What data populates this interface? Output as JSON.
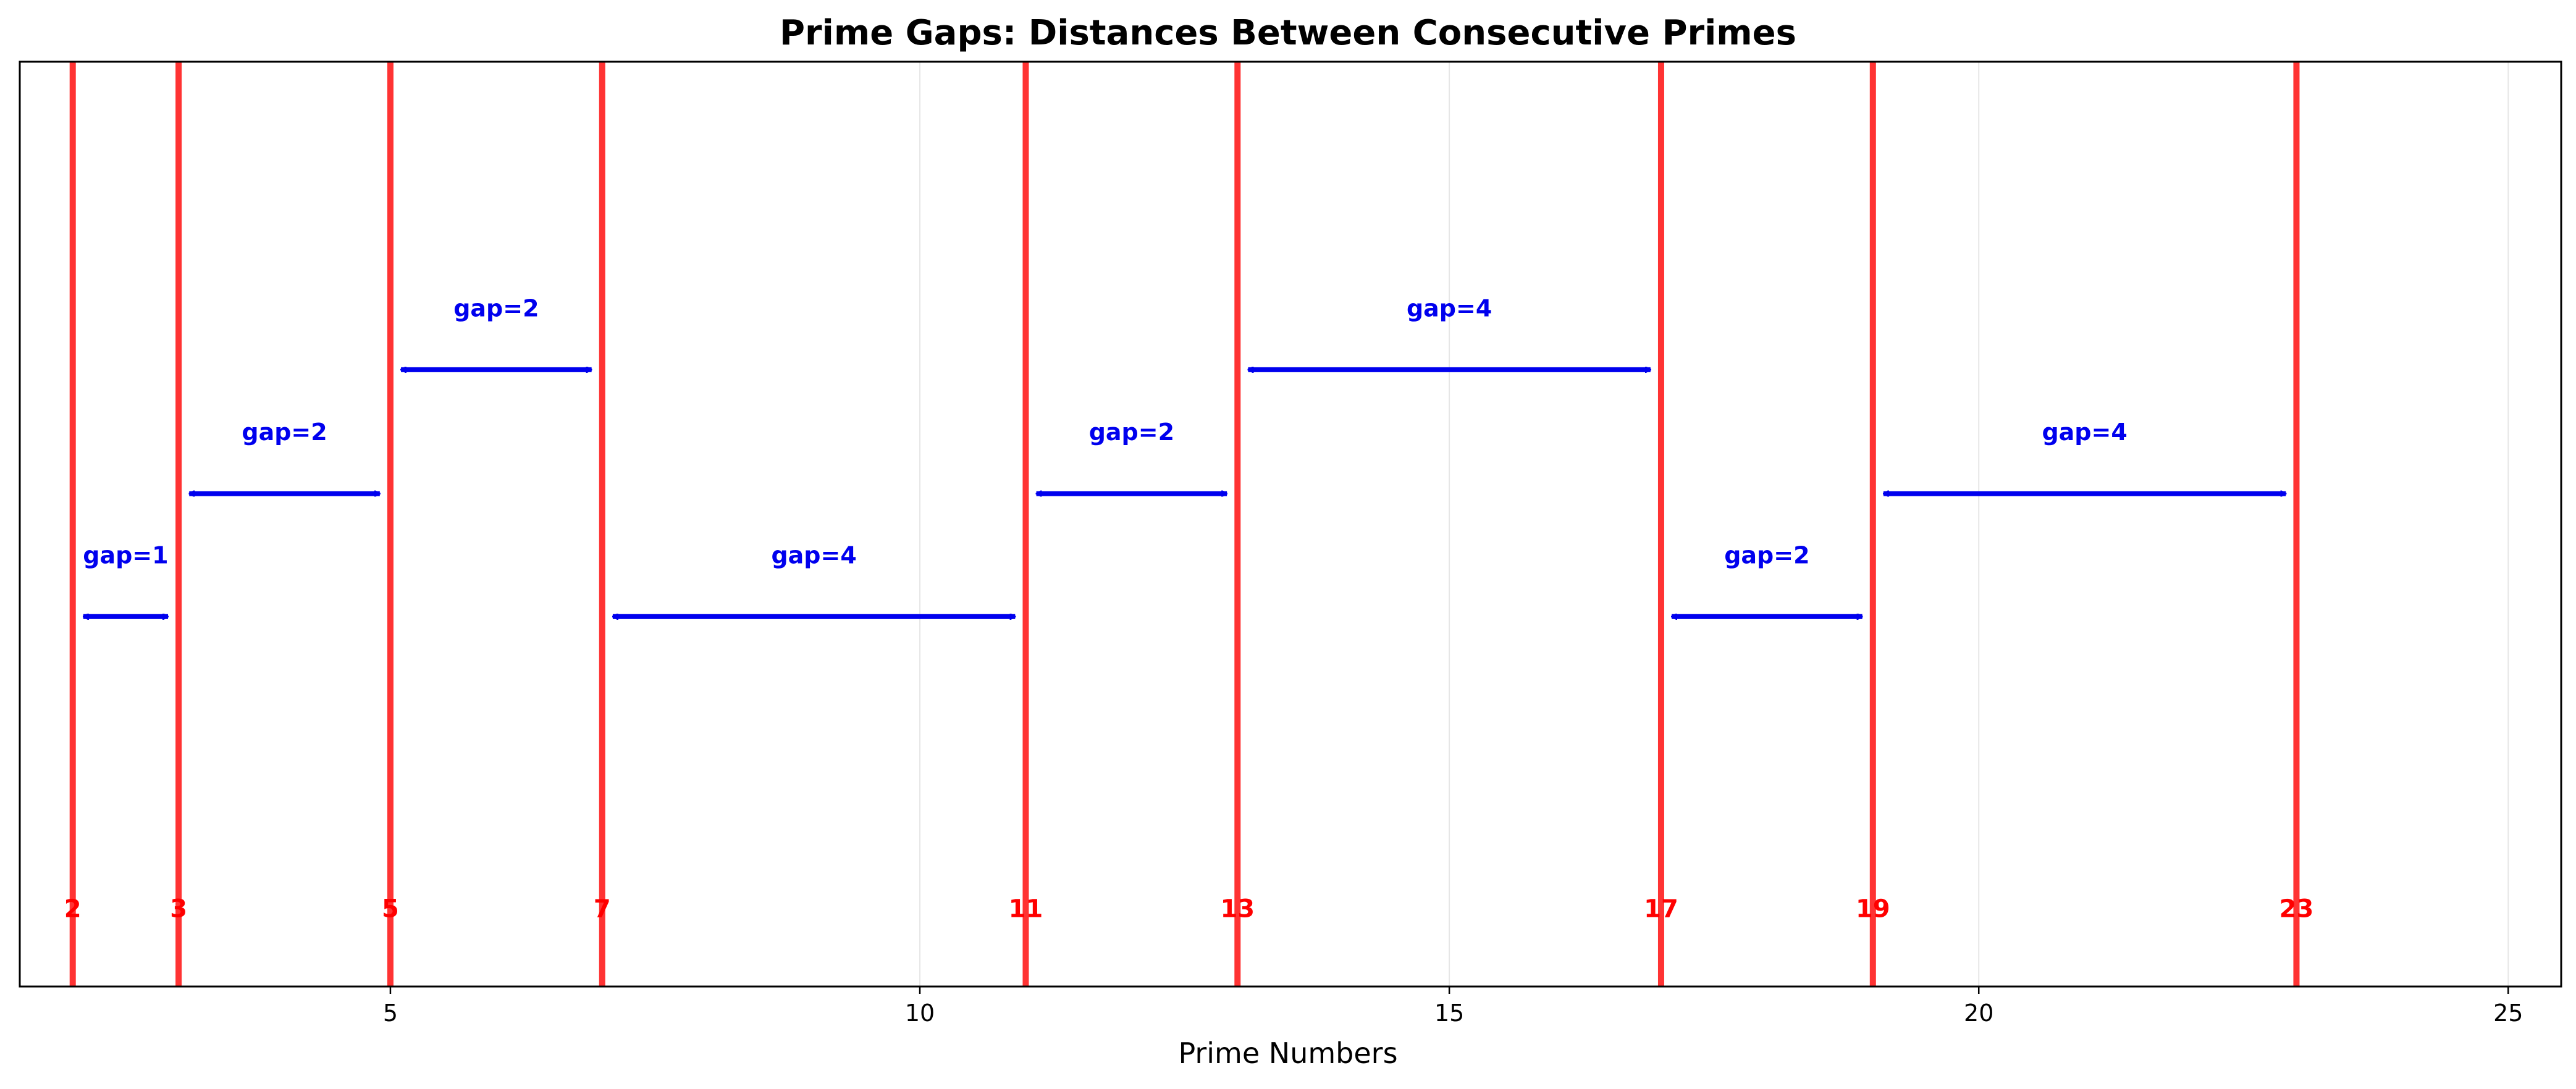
{
  "chart_data": {
    "type": "line",
    "title": "Prime Gaps: Distances Between Consecutive Primes",
    "xlabel": "Prime Numbers",
    "ylabel": "",
    "xlim": [
      1.5,
      25.5
    ],
    "ylim": [
      0,
      1
    ],
    "xticks": [
      5,
      10,
      15,
      20,
      25
    ],
    "grid": "x-only",
    "primes": [
      2,
      3,
      5,
      7,
      11,
      13,
      17,
      19,
      23
    ],
    "prime_color": "#ff3333",
    "gap_color": "#0000ee",
    "gaps": [
      {
        "start": 2,
        "end": 3,
        "label": "gap=1",
        "level": 0.4
      },
      {
        "start": 3,
        "end": 5,
        "label": "gap=2",
        "level": 0.533
      },
      {
        "start": 5,
        "end": 7,
        "label": "gap=2",
        "level": 0.667
      },
      {
        "start": 7,
        "end": 11,
        "label": "gap=4",
        "level": 0.4
      },
      {
        "start": 11,
        "end": 13,
        "label": "gap=2",
        "level": 0.533
      },
      {
        "start": 13,
        "end": 17,
        "label": "gap=4",
        "level": 0.667
      },
      {
        "start": 17,
        "end": 19,
        "label": "gap=2",
        "level": 0.4
      },
      {
        "start": 19,
        "end": 23,
        "label": "gap=4",
        "level": 0.533
      }
    ]
  }
}
